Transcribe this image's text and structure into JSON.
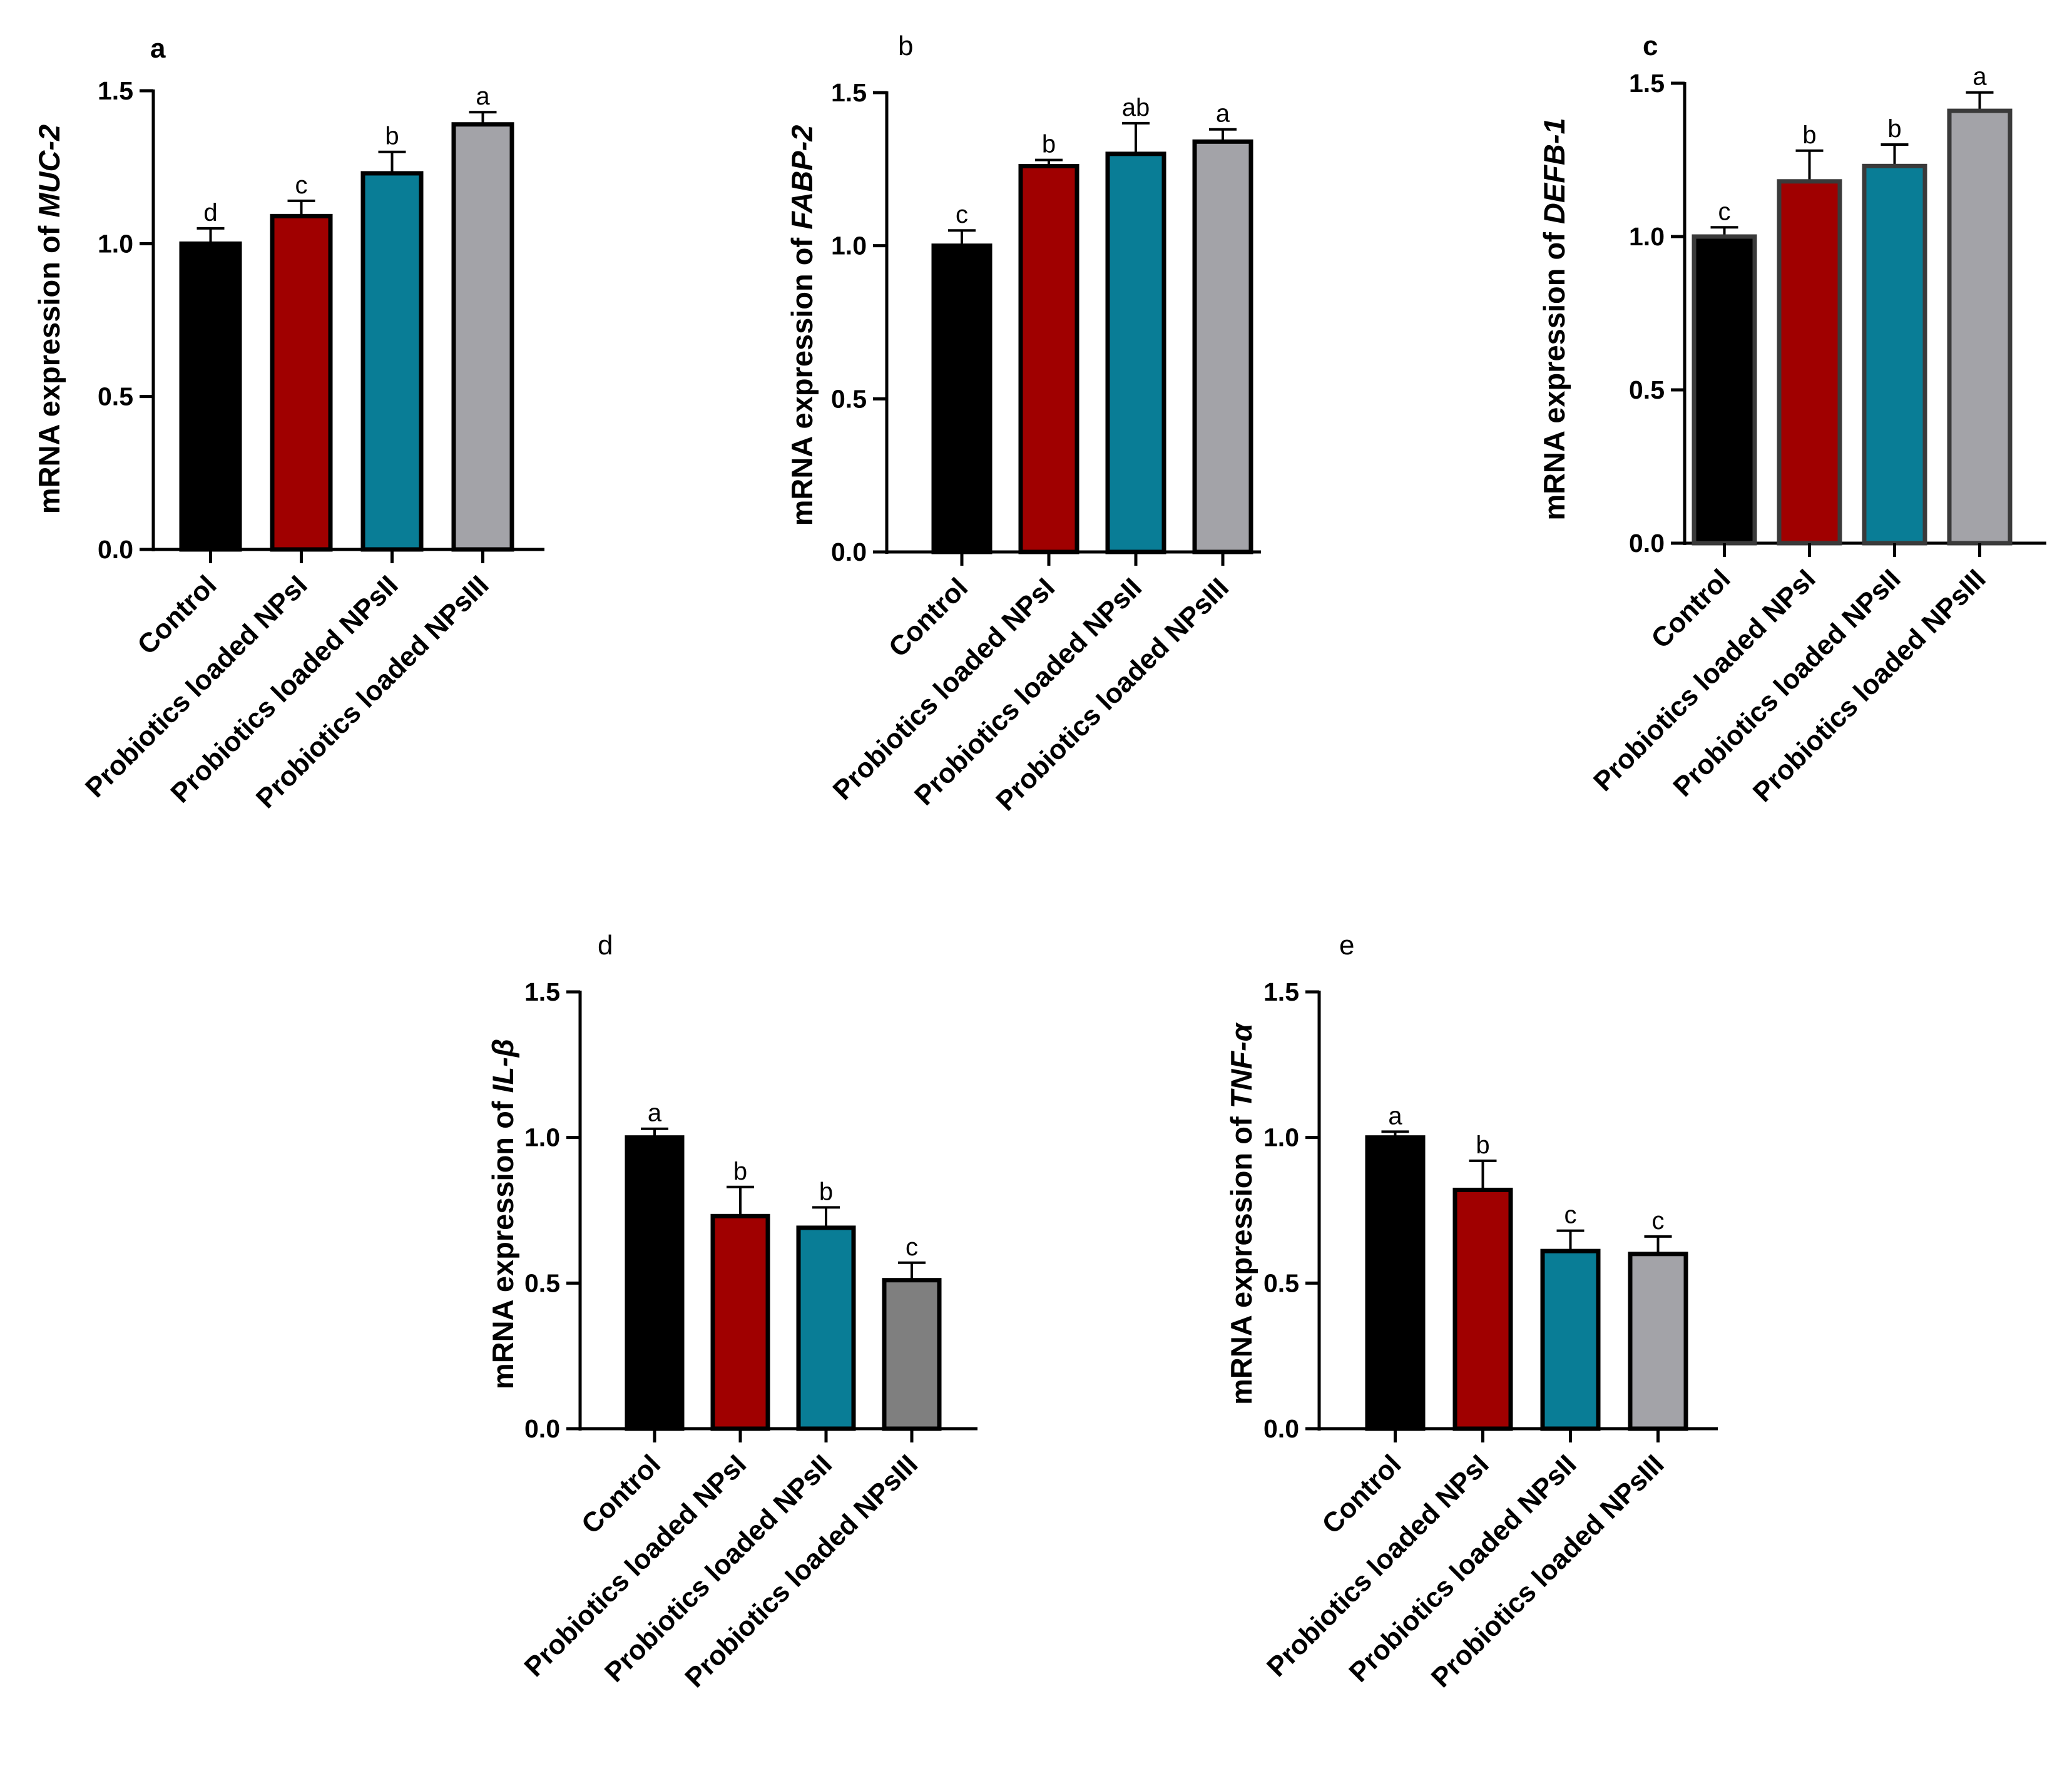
{
  "colors": {
    "black": "#000000",
    "red": "#a00000",
    "teal": "#097d96",
    "grey_light": "#a3a3a8",
    "grey_dark": "#7f7f7f",
    "edge_dark": "#3a3a3a"
  },
  "chart_data": [
    {
      "panel": "a",
      "type": "bar",
      "ylabel_prefix": "mRNA expression of ",
      "ylabel_gene": "MUC-2",
      "categories": [
        "Control",
        "Probiotics loaded NPsI",
        "Probiotics loaded NPsII",
        "Probiotics loaded NPsIII"
      ],
      "values": [
        1.0,
        1.09,
        1.23,
        1.39
      ],
      "errors": [
        0.05,
        0.05,
        0.07,
        0.04
      ],
      "letters": [
        "d",
        "c",
        "b",
        "a"
      ],
      "bar_colors": [
        "#000000",
        "#a00000",
        "#097d96",
        "#a3a3a8"
      ],
      "ylim": [
        0,
        1.5
      ],
      "yticks": [
        "0.0",
        "0.5",
        "1.0",
        "1.5"
      ]
    },
    {
      "panel": "b",
      "type": "bar",
      "ylabel_prefix": "mRNA expression of ",
      "ylabel_gene": "FABP-2",
      "categories": [
        "Control",
        "Probiotics loaded NPsI",
        "Probiotics loaded NPsII",
        "Probiotics loaded NPsIII"
      ],
      "values": [
        1.0,
        1.26,
        1.3,
        1.34
      ],
      "errors": [
        0.05,
        0.02,
        0.1,
        0.04
      ],
      "letters": [
        "c",
        "b",
        "ab",
        "a"
      ],
      "bar_colors": [
        "#000000",
        "#a00000",
        "#097d96",
        "#a3a3a8"
      ],
      "ylim": [
        0,
        1.5
      ],
      "yticks": [
        "0.0",
        "0.5",
        "1.0",
        "1.5"
      ]
    },
    {
      "panel": "c",
      "type": "bar",
      "ylabel_prefix": "mRNA expression of ",
      "ylabel_gene": "DEFB-1",
      "categories": [
        "Control",
        "Probiotics loaded NPsI",
        "Probiotics loaded NPsII",
        "Probiotics loaded NPsIII"
      ],
      "values": [
        1.0,
        1.18,
        1.23,
        1.41
      ],
      "errors": [
        0.03,
        0.1,
        0.07,
        0.06
      ],
      "letters": [
        "c",
        "b",
        "b",
        "a"
      ],
      "bar_colors": [
        "#000000",
        "#a00000",
        "#097d96",
        "#a3a3a8"
      ],
      "ylim": [
        0,
        1.5
      ],
      "yticks": [
        "0.0",
        "0.5",
        "1.0",
        "1.5"
      ]
    },
    {
      "panel": "d",
      "type": "bar",
      "ylabel_prefix": "mRNA expression of ",
      "ylabel_gene": "IL-β",
      "categories": [
        "Control",
        "Probiotics loaded NPsI",
        "Probiotics loaded NPsII",
        "Probiotics loaded NPsIII"
      ],
      "values": [
        1.0,
        0.73,
        0.69,
        0.51
      ],
      "errors": [
        0.03,
        0.1,
        0.07,
        0.06
      ],
      "letters": [
        "a",
        "b",
        "b",
        "c"
      ],
      "bar_colors": [
        "#000000",
        "#a00000",
        "#097d96",
        "#7f7f7f"
      ],
      "ylim": [
        0,
        1.5
      ],
      "yticks": [
        "0.0",
        "0.5",
        "1.0",
        "1.5"
      ]
    },
    {
      "panel": "e",
      "type": "bar",
      "ylabel_prefix": "mRNA expression of ",
      "ylabel_gene": "TNF-α",
      "categories": [
        "Control",
        "Probiotics loaded NPsI",
        "Probiotics loaded NPsII",
        "Probiotics loaded NPsIII"
      ],
      "values": [
        1.0,
        0.82,
        0.61,
        0.6
      ],
      "errors": [
        0.02,
        0.1,
        0.07,
        0.06
      ],
      "letters": [
        "a",
        "b",
        "c",
        "c"
      ],
      "bar_colors": [
        "#000000",
        "#a00000",
        "#097d96",
        "#a3a3a8"
      ],
      "ylim": [
        0,
        1.5
      ],
      "yticks": [
        "0.0",
        "0.5",
        "1.0",
        "1.5"
      ]
    }
  ]
}
